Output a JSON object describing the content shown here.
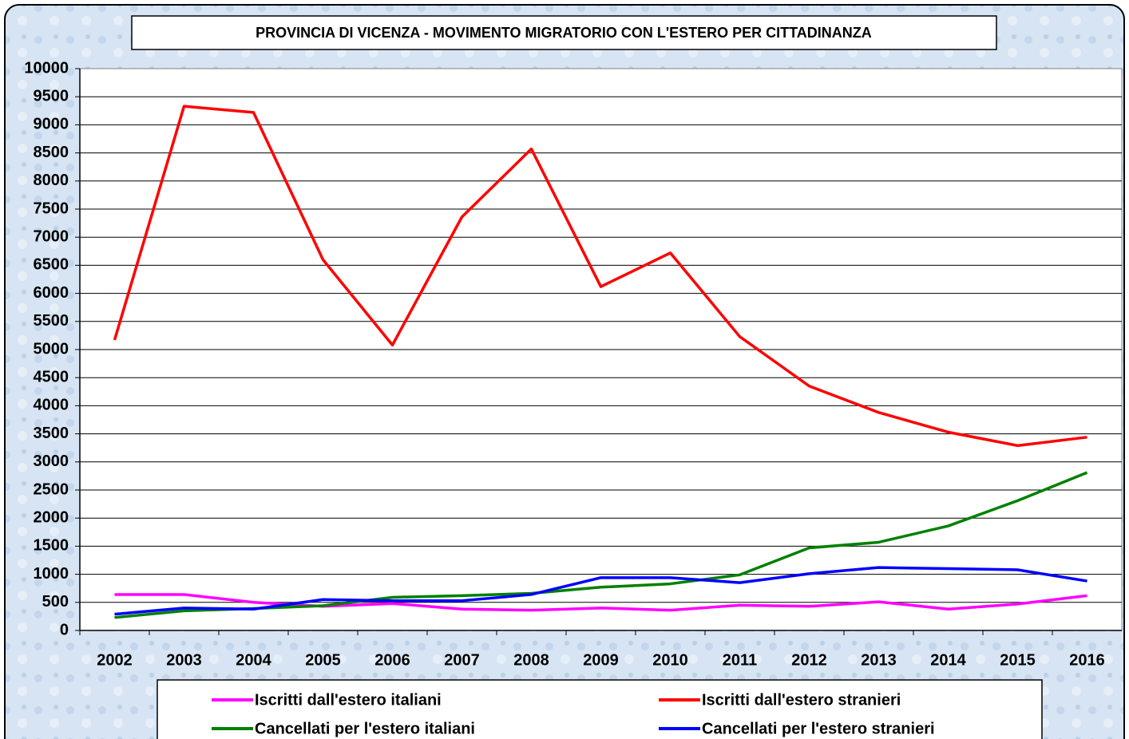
{
  "chart_data": {
    "type": "line",
    "title": "PROVINCIA DI VICENZA - MOVIMENTO MIGRATORIO CON L'ESTERO PER CITTADINANZA",
    "categories": [
      "2002",
      "2003",
      "2004",
      "2005",
      "2006",
      "2007",
      "2008",
      "2009",
      "2010",
      "2011",
      "2012",
      "2013",
      "2014",
      "2015",
      "2016"
    ],
    "series": [
      {
        "name": "Iscritti dall'estero italiani",
        "color": "#ff00ff",
        "values": [
          640,
          640,
          500,
          430,
          480,
          380,
          360,
          400,
          360,
          450,
          430,
          510,
          380,
          470,
          620
        ]
      },
      {
        "name": "Iscritti dall'estero stranieri",
        "color": "#ff0000",
        "values": [
          5170,
          9330,
          9220,
          6600,
          5080,
          7360,
          8570,
          6120,
          6720,
          5230,
          4350,
          3880,
          3530,
          3290,
          3440
        ]
      },
      {
        "name": "Cancellati per l'estero italiani",
        "color": "#008000",
        "values": [
          230,
          350,
          390,
          440,
          590,
          620,
          660,
          770,
          830,
          990,
          1470,
          1570,
          1860,
          2310,
          2810
        ]
      },
      {
        "name": "Cancellati per l'estero stranieri",
        "color": "#0000ff",
        "values": [
          290,
          400,
          380,
          550,
          530,
          530,
          640,
          940,
          940,
          850,
          1010,
          1120,
          1100,
          1080,
          880
        ]
      }
    ],
    "ylim": [
      0,
      10000
    ],
    "yticks": [
      0,
      500,
      1000,
      1500,
      2000,
      2500,
      3000,
      3500,
      4000,
      4500,
      5000,
      5500,
      6000,
      6500,
      7000,
      7500,
      8000,
      8500,
      9000,
      9500,
      10000
    ],
    "grid": true
  }
}
